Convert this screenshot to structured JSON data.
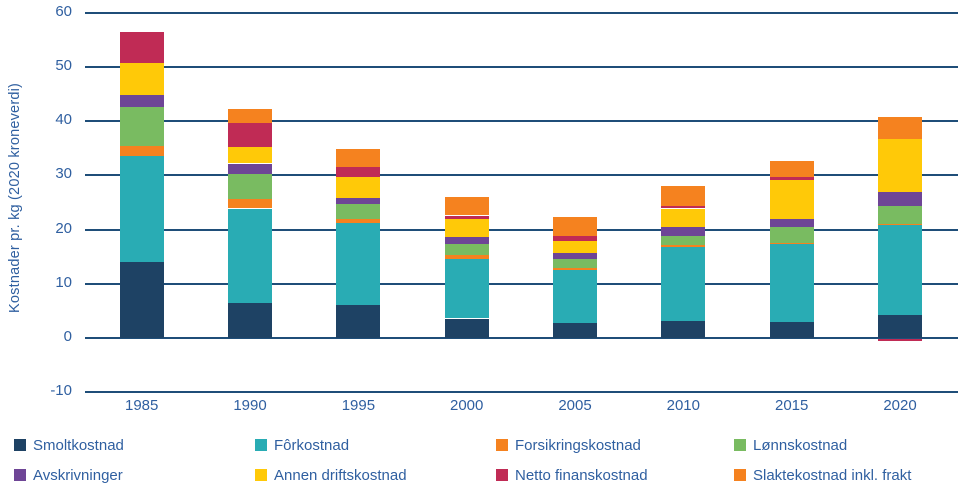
{
  "chart_data": {
    "type": "bar",
    "subtype": "stacked-vertical",
    "title": "",
    "ylabel": "Kostnader pr. kg (2020 kroneverdi)",
    "xlabel": "",
    "categories": [
      "1985",
      "1990",
      "1995",
      "2000",
      "2005",
      "2010",
      "2015",
      "2020"
    ],
    "series": [
      {
        "name": "Smoltkostnad",
        "color": "#1e4264",
        "values": [
          14.1,
          6.5,
          6.1,
          3.6,
          2.7,
          3.1,
          2.9,
          4.2
        ]
      },
      {
        "name": "Fôrkostnad",
        "color": "#29acb4",
        "values": [
          19.5,
          17.4,
          15.1,
          11.0,
          9.8,
          13.7,
          14.4,
          16.8
        ]
      },
      {
        "name": "Forsikringskostnad",
        "color": "#f5821f",
        "values": [
          1.8,
          1.7,
          0.7,
          0.7,
          0.4,
          0.3,
          0.3,
          0.1
        ]
      },
      {
        "name": "Lønnskostnad",
        "color": "#79bb61",
        "values": [
          7.3,
          4.6,
          2.9,
          2.0,
          1.7,
          1.8,
          2.8,
          3.2
        ]
      },
      {
        "name": "Avskrivninger",
        "color": "#6e4596",
        "values": [
          2.1,
          2.0,
          1.1,
          1.3,
          1.1,
          1.6,
          1.6,
          2.6
        ]
      },
      {
        "name": "Annen driftskostnad",
        "color": "#ffc908",
        "values": [
          6.0,
          3.1,
          3.8,
          3.3,
          2.2,
          3.4,
          7.1,
          9.8
        ]
      },
      {
        "name": "Netto finanskostnad",
        "color": "#c02b55",
        "values": [
          5.6,
          4.3,
          1.8,
          0.7,
          1.0,
          0.5,
          0.6,
          -0.4
        ]
      },
      {
        "name": "Slaktekostnad inkl. frakt",
        "color": "#f5821f",
        "values": [
          0.0,
          2.6,
          3.4,
          3.4,
          3.5,
          3.6,
          2.9,
          4.1
        ]
      }
    ],
    "ylim": [
      -10,
      60
    ],
    "yticks": [
      60,
      50,
      40,
      30,
      20,
      10,
      0,
      -10
    ],
    "grid": "horizontal",
    "gridline_color": "#1f4e79",
    "axis_text_color": "#2f5fa0",
    "legend_position": "bottom",
    "legend_rows": 2,
    "legend_columns": 4
  }
}
